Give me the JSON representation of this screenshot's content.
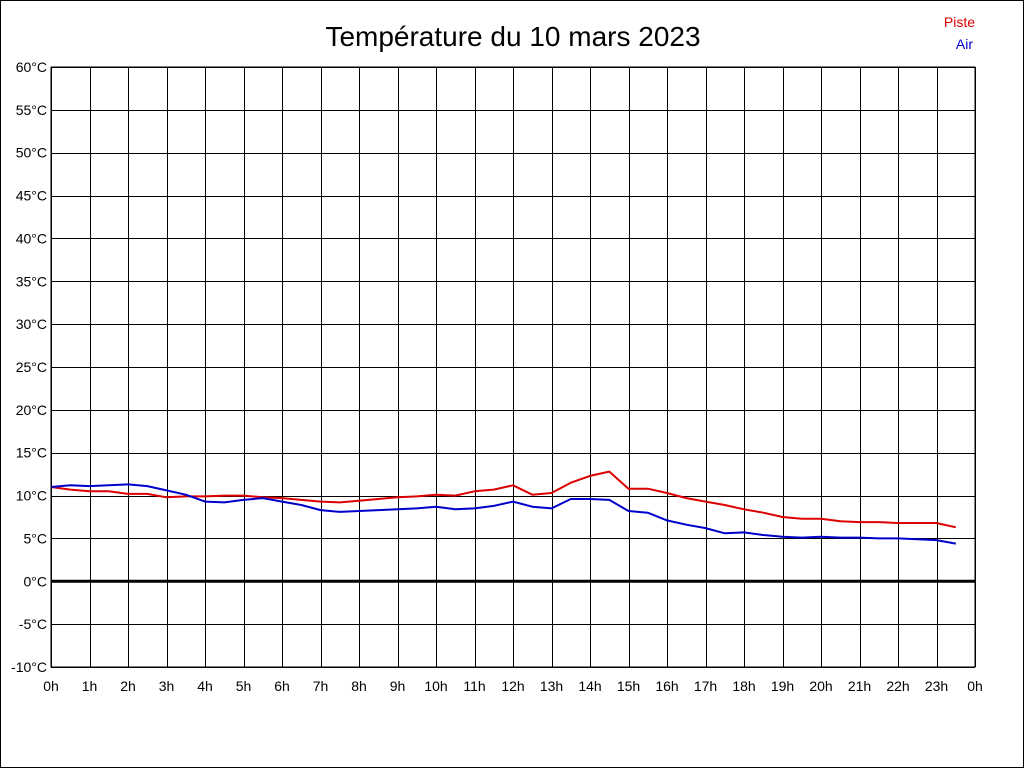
{
  "chart_data": {
    "type": "line",
    "title": "Température du 10 mars 2023",
    "xlabel": "",
    "ylabel": "",
    "xlim": [
      0,
      24
    ],
    "ylim": [
      -10,
      60
    ],
    "grid": true,
    "legend": "top-right",
    "x_ticks": [
      0,
      1,
      2,
      3,
      4,
      5,
      6,
      7,
      8,
      9,
      10,
      11,
      12,
      13,
      14,
      15,
      16,
      17,
      18,
      19,
      20,
      21,
      22,
      23,
      24
    ],
    "x_tick_labels": [
      "0h",
      "1h",
      "2h",
      "3h",
      "4h",
      "5h",
      "6h",
      "7h",
      "8h",
      "9h",
      "10h",
      "11h",
      "12h",
      "13h",
      "14h",
      "15h",
      "16h",
      "17h",
      "18h",
      "19h",
      "20h",
      "21h",
      "22h",
      "23h",
      "0h"
    ],
    "y_ticks": [
      -10,
      -5,
      0,
      5,
      10,
      15,
      20,
      25,
      30,
      35,
      40,
      45,
      50,
      55,
      60
    ],
    "y_tick_labels": [
      "-10°C",
      "-5°C",
      "0°C",
      "5°C",
      "10°C",
      "15°C",
      "20°C",
      "25°C",
      "30°C",
      "35°C",
      "40°C",
      "45°C",
      "50°C",
      "55°C",
      "60°C"
    ],
    "series": [
      {
        "name": "Piste",
        "color": "#dd0000",
        "x": [
          0,
          0.5,
          1,
          1.5,
          2,
          2.5,
          3,
          3.5,
          4,
          4.5,
          5,
          5.5,
          6,
          6.5,
          7,
          7.5,
          8,
          8.5,
          9,
          9.5,
          10,
          10.5,
          11,
          11.5,
          12,
          12.5,
          13,
          13.5,
          14,
          14.5,
          15,
          15.5,
          16,
          16.5,
          17,
          17.5,
          18,
          18.5,
          19,
          19.5,
          20,
          20.5,
          21,
          21.5,
          22,
          22.5,
          23,
          23.5
        ],
        "values": [
          11.0,
          10.7,
          10.5,
          10.5,
          10.2,
          10.2,
          9.8,
          9.9,
          9.9,
          10.0,
          10.0,
          9.8,
          9.7,
          9.5,
          9.3,
          9.2,
          9.4,
          9.6,
          9.8,
          9.9,
          10.1,
          10.0,
          10.5,
          10.7,
          11.2,
          10.1,
          10.3,
          11.5,
          12.3,
          12.8,
          10.8,
          10.8,
          10.3,
          9.7,
          9.3,
          8.9,
          8.4,
          8.0,
          7.5,
          7.3,
          7.3,
          7.0,
          6.9,
          6.9,
          6.8,
          6.8,
          6.8,
          6.3
        ]
      },
      {
        "name": "Air",
        "color": "#0000cc",
        "x": [
          0,
          0.5,
          1,
          1.5,
          2,
          2.5,
          3,
          3.5,
          4,
          4.5,
          5,
          5.5,
          6,
          6.5,
          7,
          7.5,
          8,
          8.5,
          9,
          9.5,
          10,
          10.5,
          11,
          11.5,
          12,
          12.5,
          13,
          13.5,
          14,
          14.5,
          15,
          15.5,
          16,
          16.5,
          17,
          17.5,
          18,
          18.5,
          19,
          19.5,
          20,
          20.5,
          21,
          21.5,
          22,
          22.5,
          23,
          23.5
        ],
        "values": [
          11.0,
          11.2,
          11.1,
          11.2,
          11.3,
          11.1,
          10.6,
          10.1,
          9.3,
          9.2,
          9.5,
          9.7,
          9.3,
          8.9,
          8.3,
          8.1,
          8.2,
          8.3,
          8.4,
          8.5,
          8.7,
          8.4,
          8.5,
          8.8,
          9.3,
          8.7,
          8.5,
          9.6,
          9.6,
          9.5,
          8.2,
          8.0,
          7.1,
          6.6,
          6.2,
          5.6,
          5.7,
          5.4,
          5.2,
          5.1,
          5.2,
          5.1,
          5.1,
          5.0,
          5.0,
          4.9,
          4.8,
          4.4
        ]
      }
    ]
  }
}
